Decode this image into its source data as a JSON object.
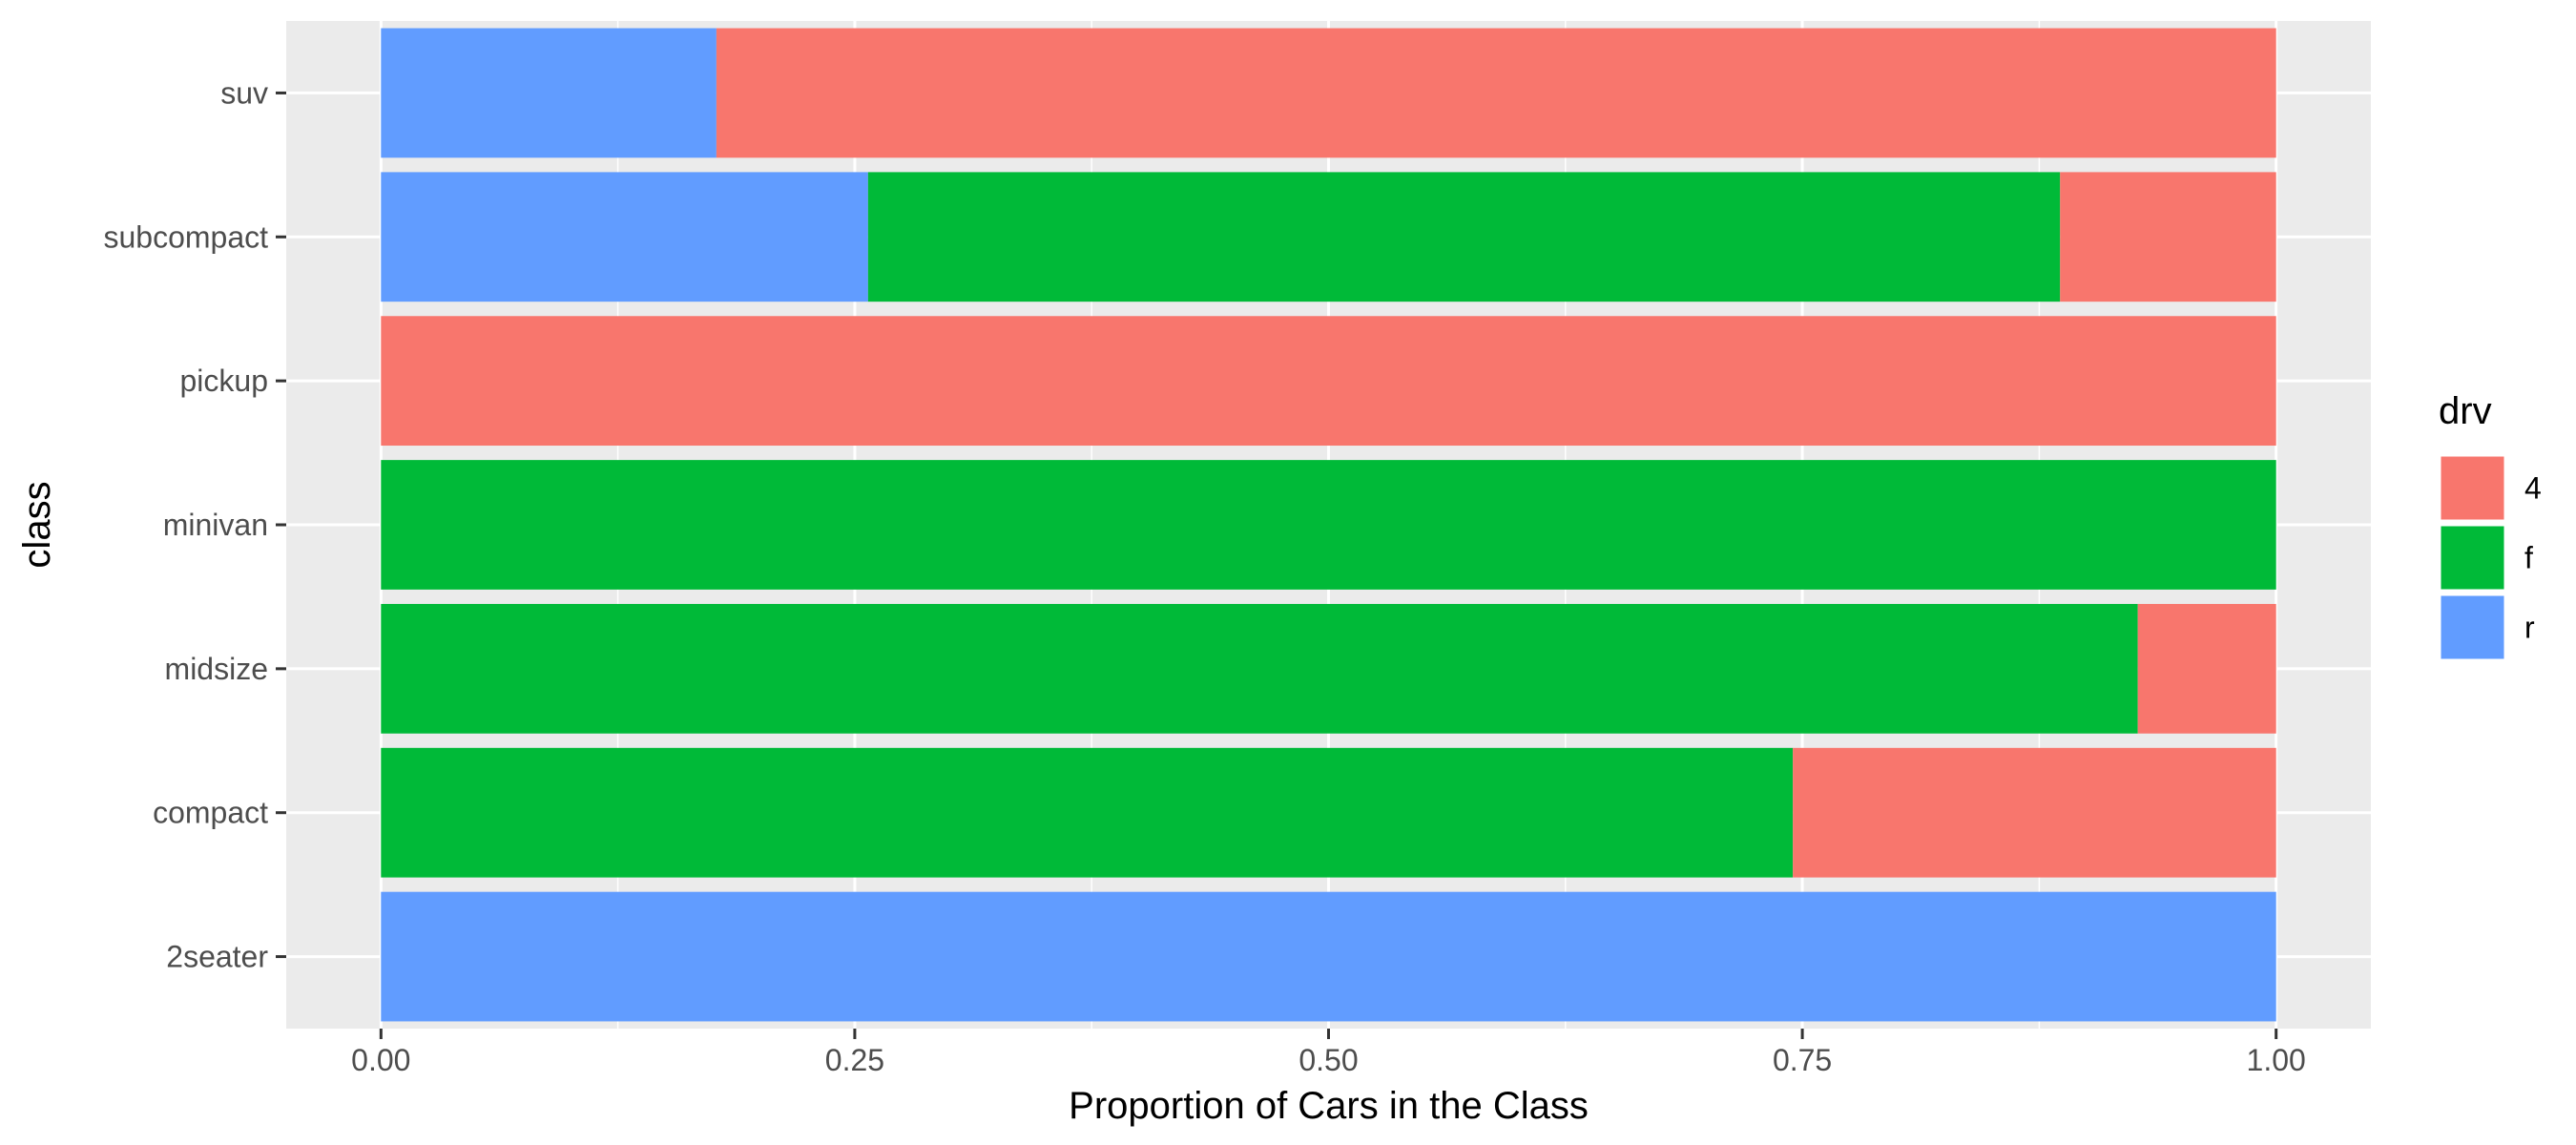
{
  "chart_data": {
    "type": "bar",
    "orientation": "horizontal",
    "stacked": "fill",
    "categories": [
      "2seater",
      "compact",
      "midsize",
      "minivan",
      "pickup",
      "subcompact",
      "suv"
    ],
    "series": [
      {
        "name": "4",
        "color": "#F8766D",
        "values": [
          0,
          0.255,
          0.073,
          0,
          1,
          0.114,
          0.823
        ]
      },
      {
        "name": "f",
        "color": "#00BA38",
        "values": [
          0,
          0.745,
          0.927,
          1,
          0,
          0.629,
          0
        ]
      },
      {
        "name": "r",
        "color": "#619CFF",
        "values": [
          1,
          0,
          0,
          0,
          0,
          0.257,
          0.177
        ]
      }
    ],
    "xlabel": "Proportion of Cars in the Class",
    "ylabel": "class",
    "xlim": [
      -0.05,
      1.05
    ],
    "xticks": [
      0,
      0.25,
      0.5,
      0.75,
      1
    ],
    "xtick_labels": [
      "0.00",
      "0.25",
      "0.50",
      "0.75",
      "1.00"
    ],
    "grid": true,
    "legend": {
      "title": "drv",
      "position": "right",
      "entries": [
        "4",
        "f",
        "r"
      ]
    },
    "panel_background": "#EBEBEB",
    "grid_color": "#FFFFFF"
  }
}
